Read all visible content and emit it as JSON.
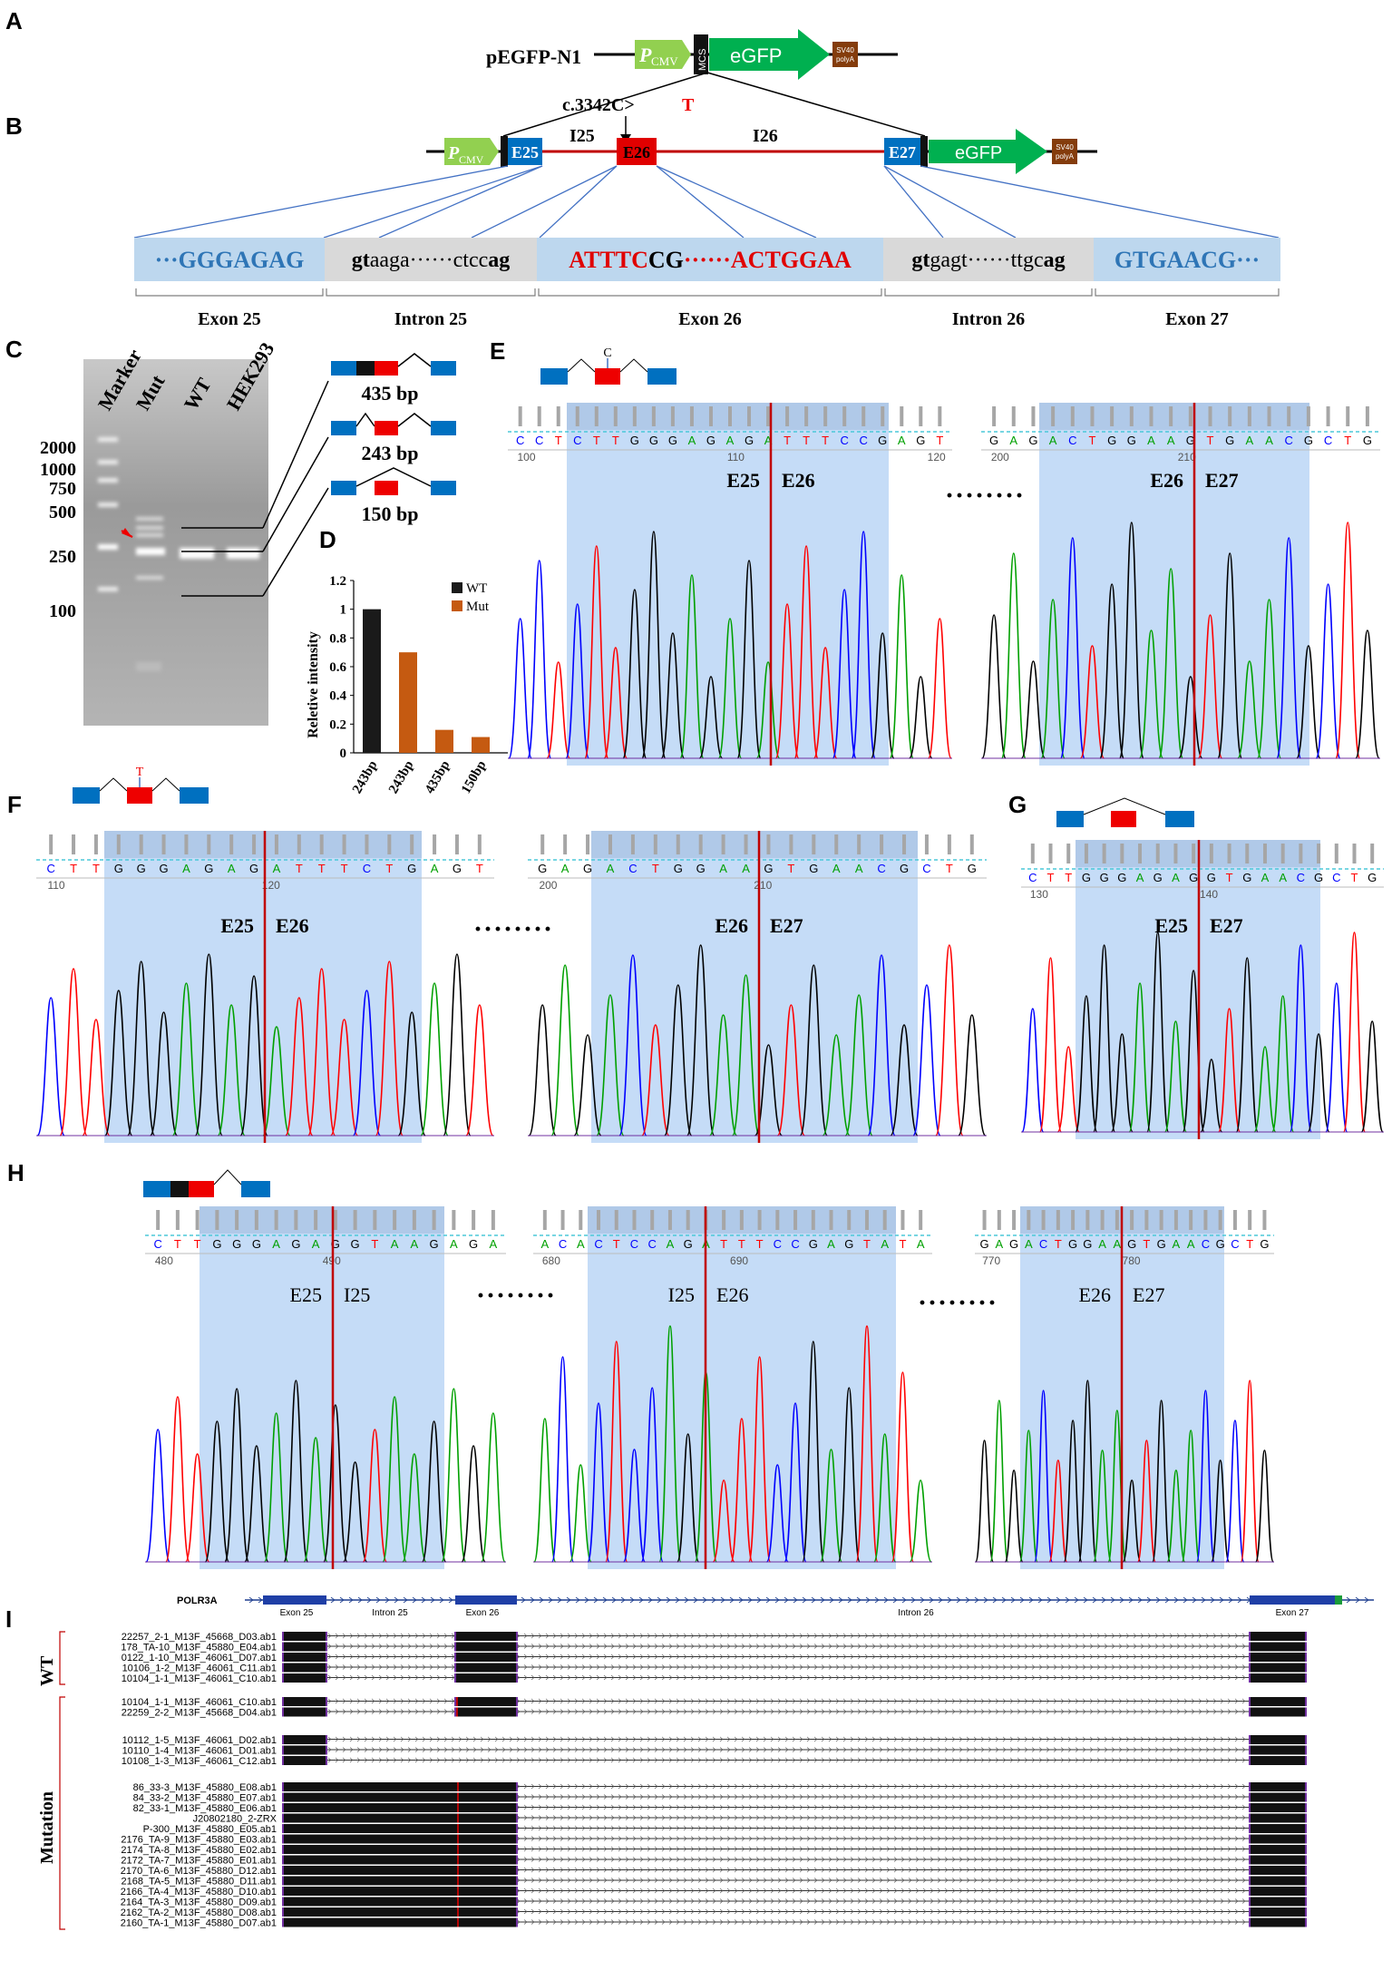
{
  "panels": {
    "A": "A",
    "B": "B",
    "C": "C",
    "D": "D",
    "E": "E",
    "F": "F",
    "G": "G",
    "H": "H",
    "I": "I"
  },
  "vector": {
    "name": "pEGFP-N1",
    "promoter": "P",
    "promoter_sub": "CMV",
    "mcs": "MCS",
    "gene": "eGFP",
    "polya_l1": "SV40",
    "polya_l2": "polyA",
    "mutation_prefix": "c.3342C>",
    "mutation_alt": "T",
    "i25": "I25",
    "i26": "I26",
    "e25": "E25",
    "e26": "E26",
    "e27": "E27"
  },
  "boxes": [
    {
      "a": "···GGGAGAG",
      "b": "",
      "c": ""
    },
    {
      "a": "gt",
      "b": "aaga······ctcc",
      "c": "ag"
    },
    {
      "a": "ATTTC",
      "b": "CG",
      "c": "······ACTGGAA"
    },
    {
      "a": "gt",
      "b": "gagt······ttgc",
      "c": "ag"
    },
    {
      "a": "GTGAACG···",
      "b": "",
      "c": ""
    }
  ],
  "regions": [
    "Exon 25",
    "Intron 25",
    "Exon 26",
    "Intron 26",
    "Exon 27"
  ],
  "gel": {
    "lanes": [
      "Marker",
      "Mut",
      "WT",
      "HEK293"
    ],
    "ladder": [
      "2000",
      "1000",
      "750",
      "500",
      "250",
      "100"
    ],
    "products": [
      "435 bp",
      "243 bp",
      "150 bp"
    ]
  },
  "chart_data": {
    "type": "bar",
    "categories": [
      "243bp",
      "243bp",
      "435bp",
      "150bp"
    ],
    "series": [
      {
        "name": "WT",
        "values": [
          1,
          null,
          null,
          null
        ]
      },
      {
        "name": "Mut",
        "values": [
          null,
          0.7,
          0.16,
          0.11
        ]
      }
    ],
    "values": [
      1,
      0.7,
      0.16,
      0.11
    ],
    "ylabel": "Reletive intensity",
    "ylim": [
      0,
      1.2
    ],
    "yticks": [
      "0",
      "0.2",
      "0.4",
      "0.6",
      "0.8",
      "1",
      "1.2"
    ],
    "legend": [
      "WT",
      "Mut"
    ],
    "colors": {
      "WT": "#1a1a1a",
      "Mut": "#c55a11"
    }
  },
  "chromatograms": {
    "E1": {
      "seq": "CCTCTTGGGAGAGATTTCCGAGT",
      "n1": "100",
      "n2": "110",
      "n3": "120",
      "j1": "E25",
      "j2": "E26",
      "marker": "C"
    },
    "E2": {
      "seq": "GAGACTGGAAGTGAACGCTG",
      "n1": "200",
      "n2": "210",
      "j1": "E26",
      "j2": "E27"
    },
    "F1": {
      "seq": "CTTGGGAGAGATTTCTGAGT",
      "n1": "110",
      "n2": "120",
      "j1": "E25",
      "j2": "E26",
      "marker": "T"
    },
    "F2": {
      "seq": "GAGACTGGAAGTGAACGCTG",
      "n1": "200",
      "n2": "210",
      "j1": "E26",
      "j2": "E27"
    },
    "G1": {
      "seq": "CTTGGGAGAGGTGAACGCTG",
      "n1": "130",
      "n2": "140",
      "j1": "E25",
      "j2": "E27"
    },
    "H1": {
      "seq": "CTTGGGAGAGGTAAGAGA",
      "n1": "480",
      "n2": "490",
      "j1": "E25",
      "j2": "I25"
    },
    "H2": {
      "seq": "ACACTCCAGATTTCCGAGTATA",
      "n1": "680",
      "n2": "690",
      "j1": "I25",
      "j2": "E26"
    },
    "H3": {
      "seq": "GAGACTGGAAGTGAACGCTG",
      "n1": "770",
      "n2": "780",
      "j1": "E26",
      "j2": "E27"
    }
  },
  "dots": "········",
  "gene_track": {
    "name": "POLR3A",
    "labels": [
      "Exon 25",
      "Intron 25",
      "Exon 26",
      "Intron 26",
      "Exon 27"
    ]
  },
  "alignment": {
    "wt_label": "WT",
    "mut_label": "Mutation",
    "wt": [
      "22257_2-1_M13F_45668_D03.ab1",
      "178_TA-10_M13F_45880_E04.ab1",
      "0122_1-10_M13F_46061_D07.ab1",
      "10106_1-2_M13F_46061_C11.ab1",
      "10104_1-1_M13F_46061_C10.ab1"
    ],
    "m1": [
      "10104_1-1_M13F_46061_C10.ab1",
      "22259_2-2_M13F_45668_D04.ab1"
    ],
    "m2": [
      "10112_1-5_M13F_46061_D02.ab1",
      "10110_1-4_M13F_46061_D01.ab1",
      "10108_1-3_M13F_46061_C12.ab1"
    ],
    "m3": [
      "86_33-3_M13F_45880_E08.ab1",
      "84_33-2_M13F_45880_E07.ab1",
      "82_33-1_M13F_45880_E06.ab1",
      "J20802180_2-ZRX",
      "P-300_M13F_45880_E05.ab1",
      "2176_TA-9_M13F_45880_E03.ab1",
      "2174_TA-8_M13F_45880_E02.ab1",
      "2172_TA-7_M13F_45880_E01.ab1",
      "2170_TA-6_M13F_45880_D12.ab1",
      "2168_TA-5_M13F_45880_D11.ab1",
      "2166_TA-4_M13F_45880_D10.ab1",
      "2164_TA-3_M13F_45880_D09.ab1",
      "2162_TA-2_M13F_45880_D08.ab1",
      "2160_TA-1_M13F_45880_D07.ab1"
    ]
  }
}
